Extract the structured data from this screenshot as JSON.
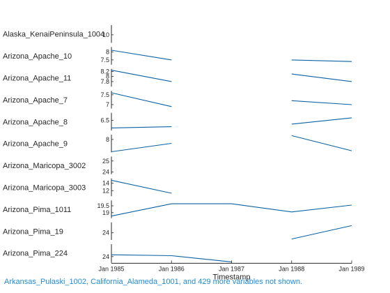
{
  "chart_data": {
    "type": "line",
    "subtype": "stacked-lanes",
    "xlabel": "Timestamp",
    "x": [
      "Jan 1985",
      "Jan 1986",
      "Jan 1987",
      "Jan 1988",
      "Jan 1989"
    ],
    "x_tick_labels": [
      "Jan 1985",
      "Jan 1986",
      "Jan 1987",
      "Jan 1988",
      "Jan 1989"
    ],
    "line_color": "#0b62a4",
    "grid": false,
    "lanes": [
      {
        "name": "Alaska_KenaiPeninsula_1004",
        "ylim": [
          9.5,
          10.6
        ],
        "yticks": [
          "10"
        ],
        "values": [
          null,
          null,
          null,
          null,
          null
        ]
      },
      {
        "name": "Arizona_Apache_10",
        "ylim": [
          7.2,
          8.3
        ],
        "yticks": [
          "8",
          "7.5"
        ],
        "values": [
          8.1,
          7.5,
          null,
          7.5,
          7.4
        ]
      },
      {
        "name": "Arizona_Apache_11",
        "ylim": [
          7.6,
          8.3
        ],
        "yticks": [
          "8.2",
          "8",
          "7.8"
        ],
        "values": [
          8.25,
          7.8,
          null,
          8.1,
          7.8
        ]
      },
      {
        "name": "Arizona_Apache_7",
        "ylim": [
          6.8,
          7.7
        ],
        "yticks": [
          "7.5",
          "7"
        ],
        "values": [
          7.6,
          6.9,
          null,
          7.2,
          7.0
        ]
      },
      {
        "name": "Arizona_Apache_8",
        "ylim": [
          6.1,
          6.8
        ],
        "yticks": [
          "6.5"
        ],
        "values": [
          6.2,
          6.25,
          null,
          6.35,
          6.6
        ]
      },
      {
        "name": "Arizona_Apache_9",
        "ylim": [
          7.6,
          8.15
        ],
        "yticks": [
          "8"
        ],
        "values": [
          7.62,
          7.88,
          null,
          8.12,
          7.65
        ]
      },
      {
        "name": "Arizona_Maricopa_3002",
        "ylim": [
          23.8,
          25.4
        ],
        "yticks": [
          "25",
          "24"
        ],
        "values": [
          null,
          null,
          null,
          null,
          null
        ]
      },
      {
        "name": "Arizona_Maricopa_3003",
        "ylim": [
          10.5,
          15.3
        ],
        "yticks": [
          "14",
          "12"
        ],
        "values": [
          14.8,
          11.3,
          null,
          null,
          null
        ]
      },
      {
        "name": "Arizona_Pima_1011",
        "ylim": [
          18.6,
          19.9
        ],
        "yticks": [
          "19.5",
          "19"
        ],
        "values": [
          18.75,
          19.65,
          19.65,
          19.05,
          19.55
        ]
      },
      {
        "name": "Arizona_Pima_19",
        "ylim": [
          22.5,
          26.2
        ],
        "yticks": [
          "24"
        ],
        "values": [
          null,
          null,
          null,
          22.7,
          25.5
        ]
      },
      {
        "name": "Arizona_Pima_224",
        "ylim": [
          23.7,
          24.7
        ],
        "yticks": [
          "24"
        ],
        "values": [
          24.1,
          24.05,
          23.7,
          null,
          null
        ]
      }
    ],
    "footnote": "Arkansas_Pulaski_1002, California_Alameda_1001, and 429 more variables not shown."
  }
}
